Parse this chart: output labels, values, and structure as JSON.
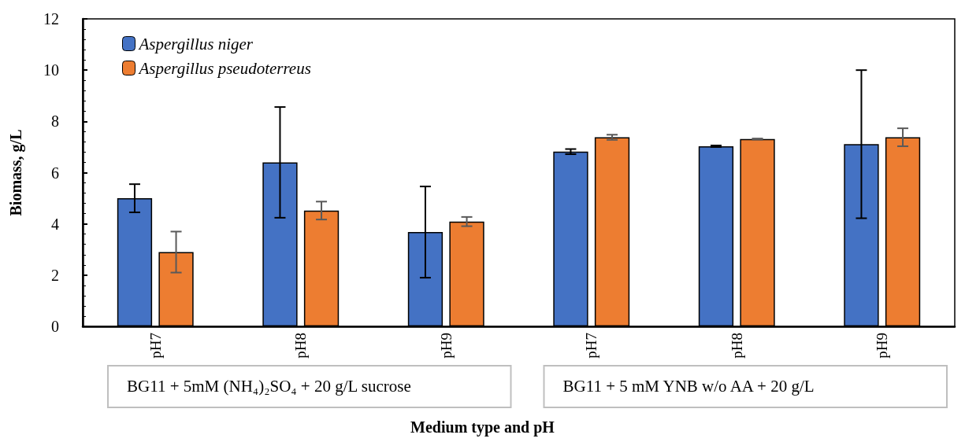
{
  "chart_data": {
    "type": "bar",
    "xlabel": "Medium type and pH",
    "ylabel": "Biomass, g/L",
    "categories": [
      "pH7",
      "pH8",
      "pH9",
      "pH7",
      "pH8",
      "pH9"
    ],
    "series": [
      {
        "name": "Aspergillus niger",
        "color": "#4472c4",
        "values": [
          5.0,
          6.4,
          3.68,
          6.82,
          7.03,
          7.11
        ],
        "errors": [
          0.55,
          2.16,
          1.78,
          0.1,
          0.03,
          2.89
        ]
      },
      {
        "name": "Aspergillus pseudoterreus",
        "color": "#ed7d31",
        "values": [
          2.9,
          4.52,
          4.09,
          7.38,
          7.31,
          7.38
        ],
        "errors": [
          0.8,
          0.35,
          0.18,
          0.1,
          0.02,
          0.35
        ]
      }
    ],
    "ylim": [
      0,
      12
    ],
    "yticks": [
      0,
      2,
      4,
      6,
      8,
      10,
      12
    ],
    "grid": false,
    "legend": "top left",
    "annotations": [
      "BG11 + 5mM (NH₄)₂SO₄ + 20 g/L sucrose",
      "BG11 + 5 mM YNB w/o AA + 20 g/L"
    ]
  }
}
